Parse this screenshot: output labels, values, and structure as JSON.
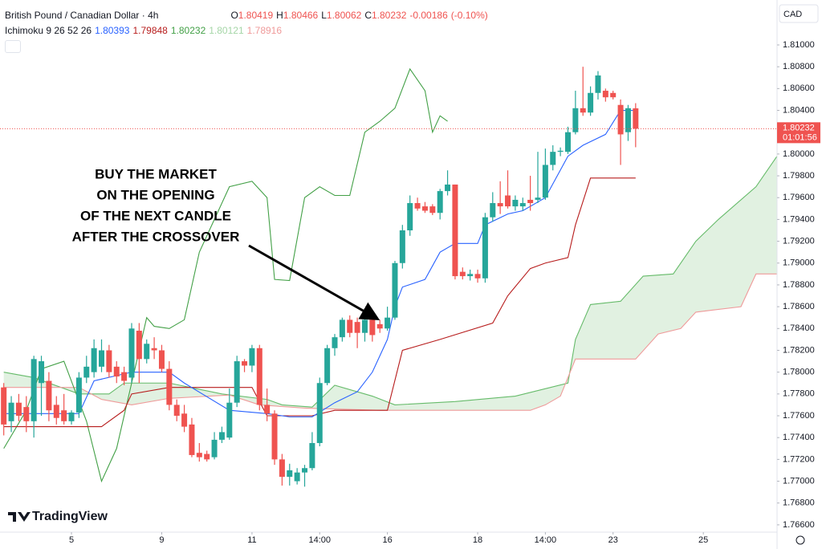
{
  "chart_data": {
    "type": "candlestick",
    "title": "British Pound / Canadian Dollar · 4h",
    "ohlc_legend": [
      {
        "label": "O",
        "value": 1.80419
      },
      {
        "label": "H",
        "value": 1.80466
      },
      {
        "label": "L",
        "value": 1.80062
      },
      {
        "label": "C",
        "value": 1.80232
      }
    ],
    "change": -0.00186,
    "change_percent": {
      "value": -0.1,
      "label": "(-0.10%)"
    },
    "indicator": {
      "label": "Ichimoku 9 26 52 26",
      "values": [
        1.80393,
        1.79848,
        1.80232,
        1.80121,
        1.78916
      ],
      "colors": [
        "#2962ff",
        "#b71c1c",
        "#43a047",
        "#a5d6a7",
        "#ef9a9a"
      ]
    },
    "currency": "CAD",
    "last_price": {
      "value": 1.80232,
      "countdown": "01:01:56",
      "color": "#ef5350"
    },
    "annotation": [
      "BUY THE MARKET",
      "ON THE OPENING",
      "OF THE NEXT CANDLE",
      "AFTER THE CROSSOVER"
    ],
    "brand": "TradingView",
    "up_color": "#26a69a",
    "down_color": "#ef5350",
    "xlim": [
      -0.5,
      102.8
    ],
    "ylim": [
      1.76533,
      1.81412
    ],
    "xticks": [
      {
        "value": 9,
        "label": "5"
      },
      {
        "value": 21,
        "label": "9"
      },
      {
        "value": 33,
        "label": "11"
      },
      {
        "value": 42,
        "label": "14:00"
      },
      {
        "value": 51,
        "label": "16"
      },
      {
        "value": 63,
        "label": "18"
      },
      {
        "value": 72,
        "label": "14:00"
      },
      {
        "value": 81,
        "label": "23"
      },
      {
        "value": 93,
        "label": "25"
      }
    ],
    "yticks": [
      {
        "value": 1.81,
        "label": "1.81000"
      },
      {
        "value": 1.808,
        "label": "1.80800"
      },
      {
        "value": 1.806,
        "label": "1.80600"
      },
      {
        "value": 1.804,
        "label": "1.80400"
      },
      {
        "value": 1.8,
        "label": "1.80000"
      },
      {
        "value": 1.798,
        "label": "1.79800"
      },
      {
        "value": 1.796,
        "label": "1.79600"
      },
      {
        "value": 1.794,
        "label": "1.79400"
      },
      {
        "value": 1.792,
        "label": "1.79200"
      },
      {
        "value": 1.79,
        "label": "1.79000"
      },
      {
        "value": 1.788,
        "label": "1.78800"
      },
      {
        "value": 1.786,
        "label": "1.78600"
      },
      {
        "value": 1.784,
        "label": "1.78400"
      },
      {
        "value": 1.782,
        "label": "1.78200"
      },
      {
        "value": 1.78,
        "label": "1.78000"
      },
      {
        "value": 1.778,
        "label": "1.77800"
      },
      {
        "value": 1.776,
        "label": "1.77600"
      },
      {
        "value": 1.774,
        "label": "1.77400"
      },
      {
        "value": 1.772,
        "label": "1.77200"
      },
      {
        "value": 1.77,
        "label": "1.77000"
      },
      {
        "value": 1.768,
        "label": "1.76800"
      },
      {
        "value": 1.766,
        "label": "1.76600"
      }
    ],
    "open": [
      1.7786,
      1.7755,
      1.7772,
      1.7768,
      1.7755,
      1.779,
      1.7792,
      1.777,
      1.7765,
      1.7755,
      1.7763,
      1.7795,
      1.78,
      1.7805,
      1.782,
      1.7805,
      1.78,
      1.7795,
      1.7838,
      1.7812,
      1.7822,
      1.782,
      1.7803,
      1.777,
      1.7762,
      1.7752,
      1.7726,
      1.7725,
      1.7722,
      1.7738,
      1.774,
      1.7772,
      1.781,
      1.7806,
      1.7822,
      1.777,
      1.7762,
      1.772,
      1.7704,
      1.77,
      1.7708,
      1.7712,
      1.7735,
      1.779,
      1.7822,
      1.7832,
      1.7848,
      1.7846,
      1.7836,
      1.7848,
      1.7844,
      1.784,
      1.785,
      1.79,
      1.793,
      1.7955,
      1.7952,
      1.7952,
      1.7946,
      1.7966,
      1.7972,
      1.7892,
      1.7888,
      1.789,
      1.7886,
      1.7942,
      1.7955,
      1.7962,
      1.7952,
      1.7952,
      1.7958,
      1.7958,
      1.796,
      1.799,
      1.8002,
      1.8002,
      1.802,
      1.8042,
      1.8038,
      1.8056,
      1.8058,
      1.8056,
      1.8045,
      1.802,
      1.80419
    ],
    "high": [
      1.779,
      1.7778,
      1.778,
      1.7778,
      1.7815,
      1.7815,
      1.78,
      1.7778,
      1.778,
      1.7765,
      1.78,
      1.7815,
      1.783,
      1.783,
      1.7825,
      1.781,
      1.7805,
      1.7845,
      1.7845,
      1.783,
      1.7832,
      1.7825,
      1.781,
      1.7775,
      1.777,
      1.7758,
      1.7735,
      1.7728,
      1.7745,
      1.775,
      1.7785,
      1.7815,
      1.7812,
      1.7825,
      1.7825,
      1.7785,
      1.7765,
      1.7725,
      1.7716,
      1.7712,
      1.7715,
      1.7745,
      1.7795,
      1.7825,
      1.7835,
      1.785,
      1.7852,
      1.785,
      1.7856,
      1.7852,
      1.7848,
      1.786,
      1.7902,
      1.7935,
      1.7962,
      1.796,
      1.7956,
      1.7954,
      1.7968,
      1.7985,
      1.7972,
      1.7896,
      1.7894,
      1.7894,
      1.7946,
      1.7965,
      1.7975,
      1.7985,
      1.7962,
      1.796,
      1.798,
      1.8002,
      1.8005,
      1.8008,
      1.8006,
      1.8025,
      1.8058,
      1.808,
      1.8062,
      1.8076,
      1.806,
      1.8058,
      1.805,
      1.8045,
      1.80466
    ],
    "low": [
      1.7742,
      1.7745,
      1.7755,
      1.7745,
      1.774,
      1.776,
      1.7755,
      1.7752,
      1.7752,
      1.7752,
      1.7758,
      1.779,
      1.7795,
      1.78,
      1.7795,
      1.779,
      1.7788,
      1.779,
      1.779,
      1.7808,
      1.7812,
      1.78,
      1.7765,
      1.7755,
      1.7745,
      1.7722,
      1.7718,
      1.7718,
      1.772,
      1.7735,
      1.7738,
      1.7768,
      1.78,
      1.78,
      1.7765,
      1.7755,
      1.7715,
      1.7696,
      1.7696,
      1.7697,
      1.7695,
      1.771,
      1.7732,
      1.7788,
      1.7815,
      1.7828,
      1.7832,
      1.7822,
      1.7828,
      1.7828,
      1.7836,
      1.7838,
      1.7848,
      1.7895,
      1.7925,
      1.7948,
      1.7946,
      1.7944,
      1.794,
      1.7962,
      1.7885,
      1.7885,
      1.7884,
      1.7882,
      1.7882,
      1.7938,
      1.7945,
      1.795,
      1.7948,
      1.7948,
      1.7948,
      1.7955,
      1.7958,
      1.7985,
      1.7998,
      1.8,
      1.8018,
      1.8035,
      1.8035,
      1.805,
      1.8048,
      1.805,
      1.799,
      1.8012,
      1.80062
    ],
    "close": [
      1.7752,
      1.7772,
      1.776,
      1.7755,
      1.7812,
      1.781,
      1.7765,
      1.7758,
      1.7755,
      1.7763,
      1.7795,
      1.7805,
      1.7822,
      1.782,
      1.78,
      1.7796,
      1.7792,
      1.784,
      1.7812,
      1.7826,
      1.782,
      1.7803,
      1.777,
      1.776,
      1.775,
      1.7724,
      1.7722,
      1.772,
      1.7738,
      1.7745,
      1.7772,
      1.781,
      1.7806,
      1.7822,
      1.777,
      1.7762,
      1.772,
      1.7704,
      1.771,
      1.7708,
      1.7712,
      1.7735,
      1.779,
      1.7822,
      1.7832,
      1.7848,
      1.7836,
      1.7836,
      1.7848,
      1.7834,
      1.784,
      1.785,
      1.79,
      1.793,
      1.7955,
      1.795,
      1.7948,
      1.7946,
      1.7966,
      1.7972,
      1.7888,
      1.7888,
      1.789,
      1.7886,
      1.7942,
      1.7955,
      1.7952,
      1.7952,
      1.7958,
      1.7955,
      1.7955,
      1.796,
      1.799,
      1.8002,
      1.8003,
      1.802,
      1.8042,
      1.8038,
      1.8056,
      1.8072,
      1.8052,
      1.8052,
      1.8018,
      1.8042,
      1.80232
    ],
    "cloud_fill": "#c8e6c9",
    "series": [
      {
        "color": "#66bb6a",
        "x": [
          0,
          4,
          10,
          14,
          16,
          22,
          29,
          35,
          37,
          41,
          44,
          49,
          52,
          60,
          68,
          75,
          76,
          78,
          82,
          85,
          89,
          92,
          95,
          100,
          102.8
        ],
        "values": [
          1.78,
          1.7795,
          1.778,
          1.778,
          1.779,
          1.779,
          1.778,
          1.7775,
          1.777,
          1.7768,
          1.7788,
          1.7778,
          1.777,
          1.7773,
          1.7778,
          1.779,
          1.783,
          1.7862,
          1.7865,
          1.7888,
          1.789,
          1.792,
          1.794,
          1.797,
          1.7998
        ]
      },
      {
        "color": "#ef9a9a",
        "x": [
          0,
          10,
          13,
          17,
          22,
          30,
          34,
          40,
          50,
          70,
          72,
          74,
          76,
          84,
          87,
          90,
          92,
          98,
          100,
          102.8
        ],
        "values": [
          1.7786,
          1.7786,
          1.7775,
          1.777,
          1.7776,
          1.7779,
          1.777,
          1.7767,
          1.7765,
          1.7765,
          1.777,
          1.7778,
          1.7812,
          1.7812,
          1.7835,
          1.784,
          1.7855,
          1.786,
          1.789,
          1.789
        ]
      },
      {
        "color": "#43a047",
        "x": [
          0,
          3,
          5,
          8,
          11,
          13,
          15,
          17,
          19,
          20,
          22,
          24,
          26,
          28,
          30,
          33,
          35,
          36,
          38,
          40,
          42,
          44,
          46,
          48,
          50,
          52,
          54,
          56,
          57,
          58,
          59
        ],
        "values": [
          1.773,
          1.7765,
          1.7803,
          1.781,
          1.7755,
          1.77,
          1.773,
          1.779,
          1.785,
          1.7842,
          1.784,
          1.7848,
          1.791,
          1.794,
          1.797,
          1.7975,
          1.796,
          1.7885,
          1.7884,
          1.796,
          1.797,
          1.7962,
          1.7962,
          1.802,
          1.803,
          1.8042,
          1.8078,
          1.8058,
          1.802,
          1.8035,
          1.803
        ]
      },
      {
        "color": "#b71c1c",
        "x": [
          0,
          13,
          16,
          17,
          22,
          33,
          35,
          41,
          44,
          51,
          53,
          58,
          65,
          67,
          70,
          72,
          75,
          76,
          78,
          84
        ],
        "values": [
          1.775,
          1.775,
          1.7765,
          1.778,
          1.7786,
          1.7786,
          1.776,
          1.776,
          1.7765,
          1.7765,
          1.782,
          1.783,
          1.7845,
          1.787,
          1.7895,
          1.79,
          1.7905,
          1.7935,
          1.7978,
          1.7978
        ]
      },
      {
        "color": "#2962ff",
        "x": [
          0,
          10,
          12,
          17,
          22,
          24,
          30,
          35,
          38,
          41,
          44,
          47,
          49,
          51,
          52,
          53,
          56,
          58,
          60,
          63,
          64,
          67,
          69,
          72,
          75,
          77,
          80,
          82,
          84
        ],
        "values": [
          1.7762,
          1.7762,
          1.7792,
          1.78,
          1.78,
          1.779,
          1.7765,
          1.7762,
          1.7759,
          1.7759,
          1.7772,
          1.7782,
          1.78,
          1.783,
          1.786,
          1.7878,
          1.7885,
          1.791,
          1.7918,
          1.7918,
          1.7935,
          1.7945,
          1.7948,
          1.796,
          1.7998,
          1.8008,
          1.8018,
          1.804,
          1.804
        ]
      }
    ]
  }
}
